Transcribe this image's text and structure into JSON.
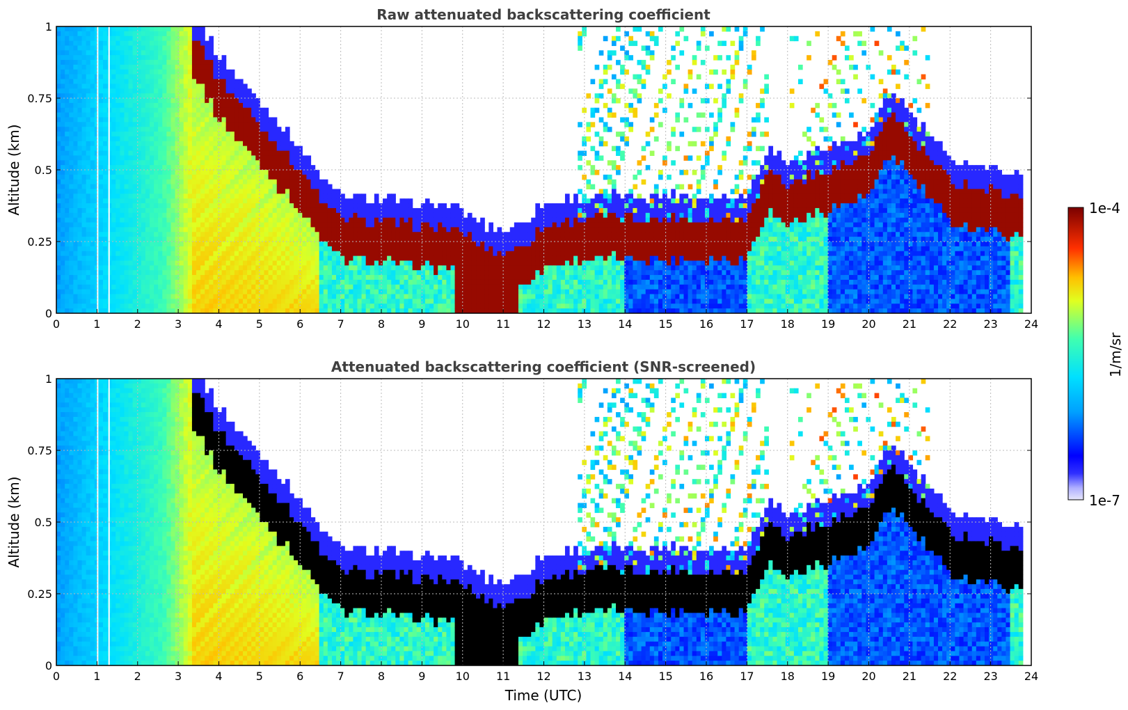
{
  "chart_data": [
    {
      "type": "heatmap",
      "title": "Raw attenuated backscattering coefficient",
      "xlabel": "",
      "ylabel": "Altitude (km)",
      "xlim": [
        0,
        24
      ],
      "ylim": [
        0,
        1
      ],
      "xticks": [
        "0",
        "1",
        "2",
        "3",
        "4",
        "5",
        "6",
        "7",
        "8",
        "9",
        "10",
        "11",
        "12",
        "13",
        "14",
        "15",
        "16",
        "17",
        "18",
        "19",
        "20",
        "21",
        "22",
        "23",
        "24"
      ],
      "yticks": [
        "0",
        "0.25",
        "0.5",
        "0.75",
        "1"
      ],
      "grid": true,
      "layer_top_km": [
        [
          3.3,
          1.0
        ],
        [
          4.0,
          0.82
        ],
        [
          5.0,
          0.66
        ],
        [
          6.0,
          0.5
        ],
        [
          6.6,
          0.38
        ],
        [
          7.0,
          0.33
        ],
        [
          8.0,
          0.32
        ],
        [
          9.0,
          0.3
        ],
        [
          9.6,
          0.3
        ],
        [
          10.0,
          0.28
        ],
        [
          10.5,
          0.23
        ],
        [
          11.0,
          0.21
        ],
        [
          11.5,
          0.24
        ],
        [
          12.0,
          0.3
        ],
        [
          13.0,
          0.33
        ],
        [
          14.0,
          0.33
        ],
        [
          15.0,
          0.33
        ],
        [
          16.0,
          0.33
        ],
        [
          17.0,
          0.33
        ],
        [
          17.5,
          0.5
        ],
        [
          18.0,
          0.45
        ],
        [
          19.0,
          0.5
        ],
        [
          20.0,
          0.55
        ],
        [
          20.6,
          0.7
        ],
        [
          21.0,
          0.62
        ],
        [
          22.0,
          0.46
        ],
        [
          23.0,
          0.43
        ],
        [
          23.8,
          0.4
        ]
      ]
    },
    {
      "type": "heatmap",
      "title": "Attenuated backscattering coefficient (SNR-screened)",
      "xlabel": "Time (UTC)",
      "ylabel": "Altitude (km)",
      "xlim": [
        0,
        24
      ],
      "ylim": [
        0,
        1
      ],
      "xticks": [
        "0",
        "1",
        "2",
        "3",
        "4",
        "5",
        "6",
        "7",
        "8",
        "9",
        "10",
        "11",
        "12",
        "13",
        "14",
        "15",
        "16",
        "17",
        "18",
        "19",
        "20",
        "21",
        "22",
        "23",
        "24"
      ],
      "yticks": [
        "0",
        "0.25",
        "0.5",
        "0.75",
        "1"
      ],
      "grid": true
    }
  ],
  "colorbar": {
    "label": "1/m/sr",
    "max_label": "1e-4",
    "min_label": "1e-7",
    "colormap": "jet",
    "min": 1e-07,
    "max": 0.0001
  }
}
